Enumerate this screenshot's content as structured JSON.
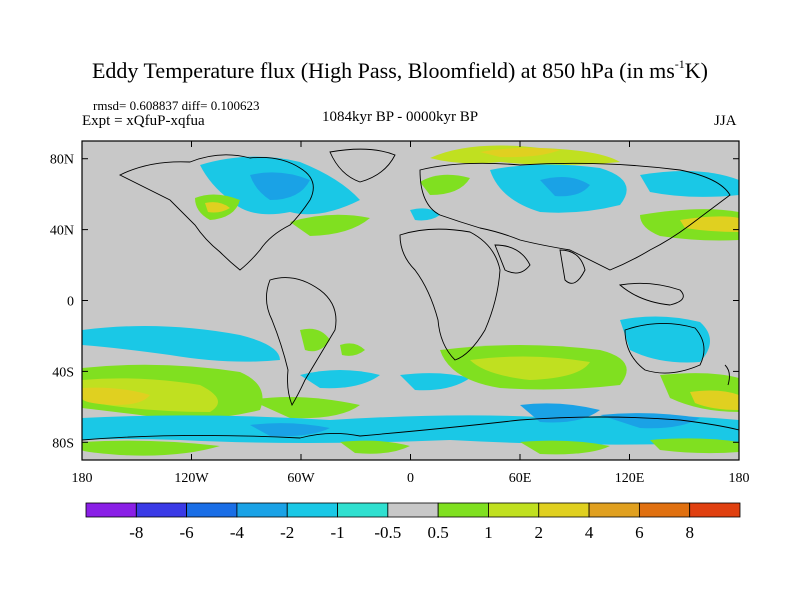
{
  "title": {
    "main": "Eddy Temperature flux (High Pass, Bloomfield) at 850 hPa (in ms",
    "superscript": "-1",
    "suffix": "K)"
  },
  "stats": "rmsd= 0.608837 diff= 0.100623",
  "experiment": "Expt = xQfuP-xqfua",
  "period": "1084kyr BP - 0000kyr BP",
  "season": "JJA",
  "axes": {
    "longitude_ticks": [
      "180",
      "120W",
      "60W",
      "0",
      "60E",
      "120E",
      "180"
    ],
    "latitude_ticks": [
      "80N",
      "40N",
      "0",
      "40S",
      "80S"
    ]
  },
  "legend": {
    "colors": [
      "#8a1fe6",
      "#3a3ae6",
      "#1a6ee6",
      "#1aa2e6",
      "#1ac8e6",
      "#30e0d0",
      "#c8c8c8",
      "#80e020",
      "#c0e020",
      "#e0d020",
      "#e0a020",
      "#e07010",
      "#e04010"
    ],
    "labels": [
      "-8",
      "-6",
      "-4",
      "-2",
      "-1",
      "-0.5",
      "0.5",
      "1",
      "2",
      "4",
      "6",
      "8"
    ]
  },
  "colors": {
    "background_field": "#c8c8c8",
    "land_outline": "#000000"
  }
}
